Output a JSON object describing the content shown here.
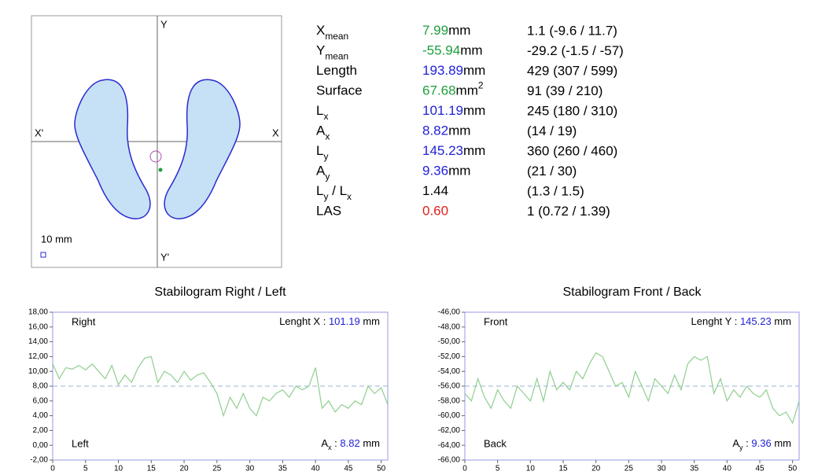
{
  "foot_diagram": {
    "y_label": "Y",
    "y_neg_label": "Y'",
    "x_label": "X",
    "x_neg_label": "X'",
    "scale_label": "10 mm"
  },
  "metrics": [
    {
      "label": [
        {
          "text": "X"
        },
        {
          "sub": "mean"
        }
      ],
      "value": "7.99",
      "color": "#1f9e3c",
      "unit": [
        {
          "text": "mm"
        }
      ],
      "range": "1.1 (-9.6 / 11.7)"
    },
    {
      "label": [
        {
          "text": "Y"
        },
        {
          "sub": "mean"
        }
      ],
      "value": "-55.94",
      "color": "#1f9e3c",
      "unit": [
        {
          "text": "mm"
        }
      ],
      "range": "-29.2 (-1.5 / -57)"
    },
    {
      "label": [
        {
          "text": "Length"
        }
      ],
      "value": "193.89",
      "color": "#2121d6",
      "unit": [
        {
          "text": "mm"
        }
      ],
      "range": "429 (307 / 599)"
    },
    {
      "label": [
        {
          "text": "Surface"
        }
      ],
      "value": "67.68",
      "color": "#1f9e3c",
      "unit": [
        {
          "text": "mm"
        },
        {
          "sup": "2"
        }
      ],
      "range": "91 (39 / 210)"
    },
    {
      "label": [
        {
          "text": "L"
        },
        {
          "sub": "x"
        }
      ],
      "value": "101.19",
      "color": "#2121d6",
      "unit": [
        {
          "text": "mm"
        }
      ],
      "range": "245 (180 / 310)"
    },
    {
      "label": [
        {
          "text": "A"
        },
        {
          "sub": "x"
        }
      ],
      "value": "8.82",
      "color": "#2121d6",
      "unit": [
        {
          "text": "mm"
        }
      ],
      "range": "(14 / 19)"
    },
    {
      "label": [
        {
          "text": "L"
        },
        {
          "sub": "y"
        }
      ],
      "value": "145.23",
      "color": "#2121d6",
      "unit": [
        {
          "text": "mm"
        }
      ],
      "range": "360 (260 / 460)"
    },
    {
      "label": [
        {
          "text": "A"
        },
        {
          "sub": "y"
        }
      ],
      "value": "9.36",
      "color": "#2121d6",
      "unit": [
        {
          "text": "mm"
        }
      ],
      "range": "(21 / 30)"
    },
    {
      "label": [
        {
          "text": "L"
        },
        {
          "sub": "y"
        },
        {
          "text": " / L"
        },
        {
          "sub": "x"
        }
      ],
      "value": "1.44",
      "color": "#000000",
      "unit": [],
      "range": "(1.3 / 1.5)"
    },
    {
      "label": [
        {
          "text": "LAS"
        }
      ],
      "value": "0.60",
      "color": "#e0201a",
      "unit": [],
      "range": "1 (0.72 / 1.39)"
    }
  ],
  "chart_data": [
    {
      "type": "line",
      "title": "Stabilogram Right / Left",
      "xlim": [
        0,
        51
      ],
      "xticks": [
        0,
        5,
        10,
        15,
        20,
        25,
        30,
        35,
        40,
        45,
        50
      ],
      "ylim": [
        -2,
        18
      ],
      "yticks": [
        {
          "value": -2,
          "label": "-2,00"
        },
        {
          "value": 0,
          "label": "0,00"
        },
        {
          "value": 2,
          "label": "2,00"
        },
        {
          "value": 4,
          "label": "4,00"
        },
        {
          "value": 6,
          "label": "6,00"
        },
        {
          "value": 8,
          "label": "8,00"
        },
        {
          "value": 10,
          "label": "10,00"
        },
        {
          "value": 12,
          "label": "12,00"
        },
        {
          "value": 14,
          "label": "14,00"
        },
        {
          "value": 16,
          "label": "16,00"
        },
        {
          "value": 18,
          "label": "18,00"
        }
      ],
      "reference_line": 8,
      "x": [
        0,
        1,
        2,
        3,
        4,
        5,
        6,
        7,
        8,
        9,
        10,
        11,
        12,
        13,
        14,
        15,
        16,
        17,
        18,
        19,
        20,
        21,
        22,
        23,
        24,
        25,
        26,
        27,
        28,
        29,
        30,
        31,
        32,
        33,
        34,
        35,
        36,
        37,
        38,
        39,
        40,
        41,
        42,
        43,
        44,
        45,
        46,
        47,
        48,
        49,
        50,
        51
      ],
      "series": [
        {
          "color": "#8fce8f",
          "values": [
            11,
            9,
            10.5,
            10.3,
            10.8,
            10.2,
            11,
            10,
            9,
            10.8,
            8.2,
            9.5,
            8.5,
            10.5,
            11.8,
            12,
            8.5,
            10,
            9.5,
            8.5,
            10,
            8.8,
            9.5,
            9.8,
            8.5,
            7,
            4,
            6.5,
            5,
            7,
            5,
            4,
            6.5,
            6,
            7,
            7.5,
            6.5,
            8,
            7.5,
            8,
            10.5,
            5,
            6,
            4.5,
            5.5,
            5,
            6,
            5.5,
            8,
            7,
            7.8,
            5.5
          ]
        }
      ],
      "annotations": {
        "top_left": "Right",
        "bottom_left": "Left",
        "top_right": [
          {
            "text": "Lenght X : "
          },
          {
            "text": "101.19",
            "color": "#2121d6"
          },
          {
            "text": " mm"
          }
        ],
        "bottom_right": [
          {
            "text": "A"
          },
          {
            "sub": "x"
          },
          {
            "text": " : "
          },
          {
            "text": "8.82",
            "color": "#2121d6"
          },
          {
            "text": " mm"
          }
        ]
      }
    },
    {
      "type": "line",
      "title": "Stabilogram Front / Back",
      "xlim": [
        0,
        51
      ],
      "xticks": [
        0,
        5,
        10,
        15,
        20,
        25,
        30,
        35,
        40,
        45,
        50
      ],
      "ylim": [
        -66,
        -46
      ],
      "yticks": [
        {
          "value": -66,
          "label": "-66,00"
        },
        {
          "value": -64,
          "label": "-64,00"
        },
        {
          "value": -62,
          "label": "-62,00"
        },
        {
          "value": -60,
          "label": "-60,00"
        },
        {
          "value": -58,
          "label": "-58,00"
        },
        {
          "value": -56,
          "label": "-56,00"
        },
        {
          "value": -54,
          "label": "-54,00"
        },
        {
          "value": -52,
          "label": "-52,00"
        },
        {
          "value": -50,
          "label": "-50,00"
        },
        {
          "value": -48,
          "label": "-48,00"
        },
        {
          "value": -46,
          "label": "-46,00"
        }
      ],
      "reference_line": -56,
      "x": [
        0,
        1,
        2,
        3,
        4,
        5,
        6,
        7,
        8,
        9,
        10,
        11,
        12,
        13,
        14,
        15,
        16,
        17,
        18,
        19,
        20,
        21,
        22,
        23,
        24,
        25,
        26,
        27,
        28,
        29,
        30,
        31,
        32,
        33,
        34,
        35,
        36,
        37,
        38,
        39,
        40,
        41,
        42,
        43,
        44,
        45,
        46,
        47,
        48,
        49,
        50,
        51
      ],
      "series": [
        {
          "color": "#8fce8f",
          "values": [
            -57,
            -58,
            -55,
            -57.5,
            -59,
            -56.5,
            -58,
            -59,
            -56,
            -57,
            -58,
            -55,
            -58,
            -54,
            -56.5,
            -55.5,
            -56.5,
            -54,
            -55,
            -53,
            -51.5,
            -52,
            -54,
            -56,
            -55.5,
            -57.5,
            -54,
            -56,
            -58,
            -55,
            -56,
            -57,
            -54.5,
            -56.5,
            -53,
            -52,
            -52.5,
            -52,
            -57,
            -55,
            -58,
            -56.5,
            -57.5,
            -56,
            -57,
            -57.5,
            -56.5,
            -59,
            -60,
            -59.5,
            -61,
            -58
          ]
        }
      ],
      "annotations": {
        "top_left": "Front",
        "bottom_left": "Back",
        "top_right": [
          {
            "text": "Lenght Y : "
          },
          {
            "text": "145.23",
            "color": "#2121d6"
          },
          {
            "text": " mm"
          }
        ],
        "bottom_right": [
          {
            "text": "A"
          },
          {
            "sub": "y"
          },
          {
            "text": " : "
          },
          {
            "text": "9.36",
            "color": "#2121d6"
          },
          {
            "text": " mm"
          }
        ]
      }
    }
  ]
}
